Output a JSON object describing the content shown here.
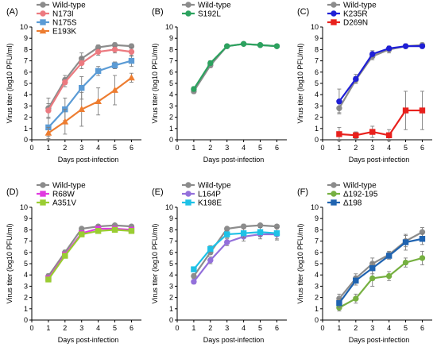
{
  "chart_data": [
    {
      "type": "line",
      "panel": "(A)",
      "xlabel": "Days   post-infection",
      "ylabel": "Virus titer (log10 PFU/ml)",
      "xlim": [
        0,
        6.6
      ],
      "ylim": [
        0,
        10
      ],
      "xticks": [
        0,
        1,
        2,
        3,
        4,
        5,
        6
      ],
      "yticks": [
        0,
        1,
        2,
        3,
        4,
        5,
        6,
        7,
        8,
        9,
        10
      ],
      "legend_position": "top-left",
      "series": [
        {
          "name": "Wild-type",
          "color": "#8c8c8c",
          "marker": "circle",
          "x": [
            1,
            2,
            3,
            4,
            5,
            6
          ],
          "y": [
            2.8,
            5.3,
            7.2,
            8.2,
            8.4,
            8.3
          ],
          "err": [
            0.9,
            0.4,
            0.5,
            0.2,
            0.2,
            0.2
          ]
        },
        {
          "name": "N173I",
          "color": "#ec7a80",
          "marker": "circle",
          "x": [
            1,
            2,
            3,
            4,
            5,
            6
          ],
          "y": [
            2.6,
            5.1,
            6.8,
            7.8,
            8.0,
            7.8
          ],
          "err": [
            0.6,
            0.4,
            0.5,
            0.3,
            0.3,
            0.4
          ]
        },
        {
          "name": "N175S",
          "color": "#5b9bd5",
          "marker": "square",
          "x": [
            1,
            2,
            3,
            4,
            5,
            6
          ],
          "y": [
            1.1,
            2.7,
            4.6,
            6.1,
            6.6,
            7.0
          ],
          "err": [
            0.8,
            1.0,
            1.0,
            0.4,
            0.3,
            0.5
          ]
        },
        {
          "name": "E193K",
          "color": "#ed7d31",
          "marker": "triangle",
          "x": [
            1,
            2,
            3,
            4,
            5,
            6
          ],
          "y": [
            0.6,
            1.6,
            2.7,
            3.4,
            4.4,
            5.5
          ],
          "err": [
            0.5,
            1.1,
            1.5,
            1.2,
            1.3,
            0.4
          ]
        }
      ]
    },
    {
      "type": "line",
      "panel": "(B)",
      "xlabel": "Days   post-infection",
      "ylabel": "Virus titer (log10 PFU/ml)",
      "xlim": [
        0,
        6.6
      ],
      "ylim": [
        0,
        10
      ],
      "xticks": [
        0,
        1,
        2,
        3,
        4,
        5,
        6
      ],
      "yticks": [
        0,
        1,
        2,
        3,
        4,
        5,
        6,
        7,
        8,
        9,
        10
      ],
      "legend_position": "top-left",
      "series": [
        {
          "name": "Wild-type",
          "color": "#8c8c8c",
          "marker": "circle",
          "x": [
            1,
            2,
            3,
            4,
            5,
            6
          ],
          "y": [
            4.3,
            6.6,
            8.3,
            8.5,
            8.4,
            8.3
          ],
          "err": [
            0.2,
            0.2,
            0.1,
            0.1,
            0.1,
            0.1
          ]
        },
        {
          "name": "S192L",
          "color": "#2ca25f",
          "marker": "circle",
          "x": [
            1,
            2,
            3,
            4,
            5,
            6
          ],
          "y": [
            4.5,
            6.8,
            8.3,
            8.5,
            8.4,
            8.3
          ],
          "err": [
            0.2,
            0.2,
            0.1,
            0.1,
            0.1,
            0.1
          ]
        }
      ]
    },
    {
      "type": "line",
      "panel": "(C)",
      "xlabel": "Days   post-infection",
      "ylabel": "Virus titer (log10 PFU/ml)",
      "xlim": [
        0,
        6.6
      ],
      "ylim": [
        0,
        10
      ],
      "xticks": [
        0,
        1,
        2,
        3,
        4,
        5,
        6
      ],
      "yticks": [
        0,
        1,
        2,
        3,
        4,
        5,
        6,
        7,
        8,
        9,
        10
      ],
      "legend_position": "top-left",
      "series": [
        {
          "name": "Wild-type",
          "color": "#8c8c8c",
          "marker": "circle",
          "x": [
            1,
            2,
            3,
            4,
            5,
            6
          ],
          "y": [
            2.8,
            5.3,
            7.4,
            8.0,
            8.3,
            8.4
          ],
          "err": [
            0.4,
            0.3,
            0.3,
            0.3,
            0.2,
            0.2
          ]
        },
        {
          "name": "K235R",
          "color": "#1f1fd6",
          "marker": "circle",
          "x": [
            1,
            2,
            3,
            4,
            5,
            6
          ],
          "y": [
            3.4,
            5.4,
            7.6,
            8.1,
            8.3,
            8.3
          ],
          "err": [
            1.1,
            0.4,
            0.3,
            0.2,
            0.2,
            0.2
          ]
        },
        {
          "name": "D269N",
          "color": "#e8211d",
          "marker": "square",
          "x": [
            1,
            2,
            3,
            4,
            5,
            6
          ],
          "y": [
            0.5,
            0.4,
            0.7,
            0.4,
            2.6,
            2.6
          ],
          "err": [
            0.6,
            0.3,
            0.5,
            0.5,
            1.7,
            1.7
          ]
        }
      ]
    },
    {
      "type": "line",
      "panel": "(D)",
      "xlabel": "Days   post-infection",
      "ylabel": "Virus titer (log10 PFU/ml)",
      "xlim": [
        0,
        6.6
      ],
      "ylim": [
        0,
        10
      ],
      "xticks": [
        0,
        1,
        2,
        3,
        4,
        5,
        6
      ],
      "yticks": [
        0,
        1,
        2,
        3,
        4,
        5,
        6,
        7,
        8,
        9,
        10
      ],
      "legend_position": "top-left",
      "series": [
        {
          "name": "Wild-type",
          "color": "#8c8c8c",
          "marker": "circle",
          "x": [
            1,
            2,
            3,
            4,
            5,
            6
          ],
          "y": [
            3.9,
            6.0,
            8.1,
            8.3,
            8.4,
            8.3
          ],
          "err": [
            0.2,
            0.2,
            0.1,
            0.1,
            0.1,
            0.1
          ]
        },
        {
          "name": "R68W",
          "color": "#e03ae0",
          "marker": "square",
          "x": [
            1,
            2,
            3,
            4,
            5,
            6
          ],
          "y": [
            3.7,
            5.8,
            7.7,
            8.1,
            8.1,
            8.0
          ],
          "err": [
            0.2,
            0.2,
            0.2,
            0.3,
            0.2,
            0.2
          ]
        },
        {
          "name": "A351V",
          "color": "#9acd32",
          "marker": "square",
          "x": [
            1,
            2,
            3,
            4,
            5,
            6
          ],
          "y": [
            3.6,
            5.7,
            7.6,
            7.9,
            8.0,
            7.9
          ],
          "err": [
            0.2,
            0.2,
            0.2,
            0.2,
            0.2,
            0.2
          ]
        }
      ]
    },
    {
      "type": "line",
      "panel": "(E)",
      "xlabel": "Days   post-infection",
      "ylabel": "Virus titer (log10 PFU/ml)",
      "xlim": [
        0,
        6.6
      ],
      "ylim": [
        0,
        10
      ],
      "xticks": [
        0,
        1,
        2,
        3,
        4,
        5,
        6
      ],
      "yticks": [
        0,
        1,
        2,
        3,
        4,
        5,
        6,
        7,
        8,
        9,
        10
      ],
      "legend_position": "top-left",
      "series": [
        {
          "name": "Wild-type",
          "color": "#8c8c8c",
          "marker": "circle",
          "x": [
            1,
            2,
            3,
            4,
            5,
            6
          ],
          "y": [
            3.9,
            6.0,
            8.1,
            8.3,
            8.4,
            8.3
          ],
          "err": [
            0.2,
            0.2,
            0.1,
            0.2,
            0.1,
            0.1
          ]
        },
        {
          "name": "L164P",
          "color": "#9370db",
          "marker": "circle",
          "x": [
            1,
            2,
            3,
            4,
            5,
            6
          ],
          "y": [
            3.4,
            5.3,
            6.9,
            7.4,
            7.6,
            7.6
          ],
          "err": [
            0.2,
            0.3,
            0.3,
            0.4,
            0.4,
            0.5
          ]
        },
        {
          "name": "K198E",
          "color": "#1ec1e6",
          "marker": "square",
          "x": [
            1,
            2,
            3,
            4,
            5,
            6
          ],
          "y": [
            4.5,
            6.3,
            7.6,
            7.7,
            7.8,
            7.7
          ],
          "err": [
            0.2,
            0.3,
            0.3,
            0.4,
            0.4,
            0.5
          ]
        }
      ]
    },
    {
      "type": "line",
      "panel": "(F)",
      "xlabel": "Days   post-infection",
      "ylabel": "Virus titer (log10 PFU/ml)",
      "xlim": [
        0,
        6.6
      ],
      "ylim": [
        0,
        10
      ],
      "xticks": [
        0,
        1,
        2,
        3,
        4,
        5,
        6
      ],
      "yticks": [
        0,
        1,
        2,
        3,
        4,
        5,
        6,
        7,
        8,
        9,
        10
      ],
      "legend_position": "top-left",
      "series": [
        {
          "name": "Wild-type",
          "color": "#8c8c8c",
          "marker": "circle",
          "x": [
            1,
            2,
            3,
            4,
            5,
            6
          ],
          "y": [
            1.9,
            3.7,
            5.0,
            5.8,
            7.0,
            7.8
          ],
          "err": [
            0.4,
            0.4,
            0.5,
            0.3,
            0.5,
            0.4
          ]
        },
        {
          "name": "Δ192-195",
          "color": "#76b041",
          "marker": "circle",
          "x": [
            1,
            2,
            3,
            4,
            5,
            6
          ],
          "y": [
            1.1,
            1.9,
            3.7,
            3.9,
            5.1,
            5.5
          ],
          "err": [
            0.3,
            0.4,
            0.7,
            0.4,
            0.4,
            0.6
          ]
        },
        {
          "name": "Δ198",
          "color": "#1f63b0",
          "marker": "square",
          "x": [
            1,
            2,
            3,
            4,
            5,
            6
          ],
          "y": [
            1.5,
            3.5,
            4.6,
            5.7,
            6.9,
            7.2
          ],
          "err": [
            0.4,
            0.4,
            0.5,
            0.3,
            0.7,
            0.5
          ]
        }
      ]
    }
  ]
}
